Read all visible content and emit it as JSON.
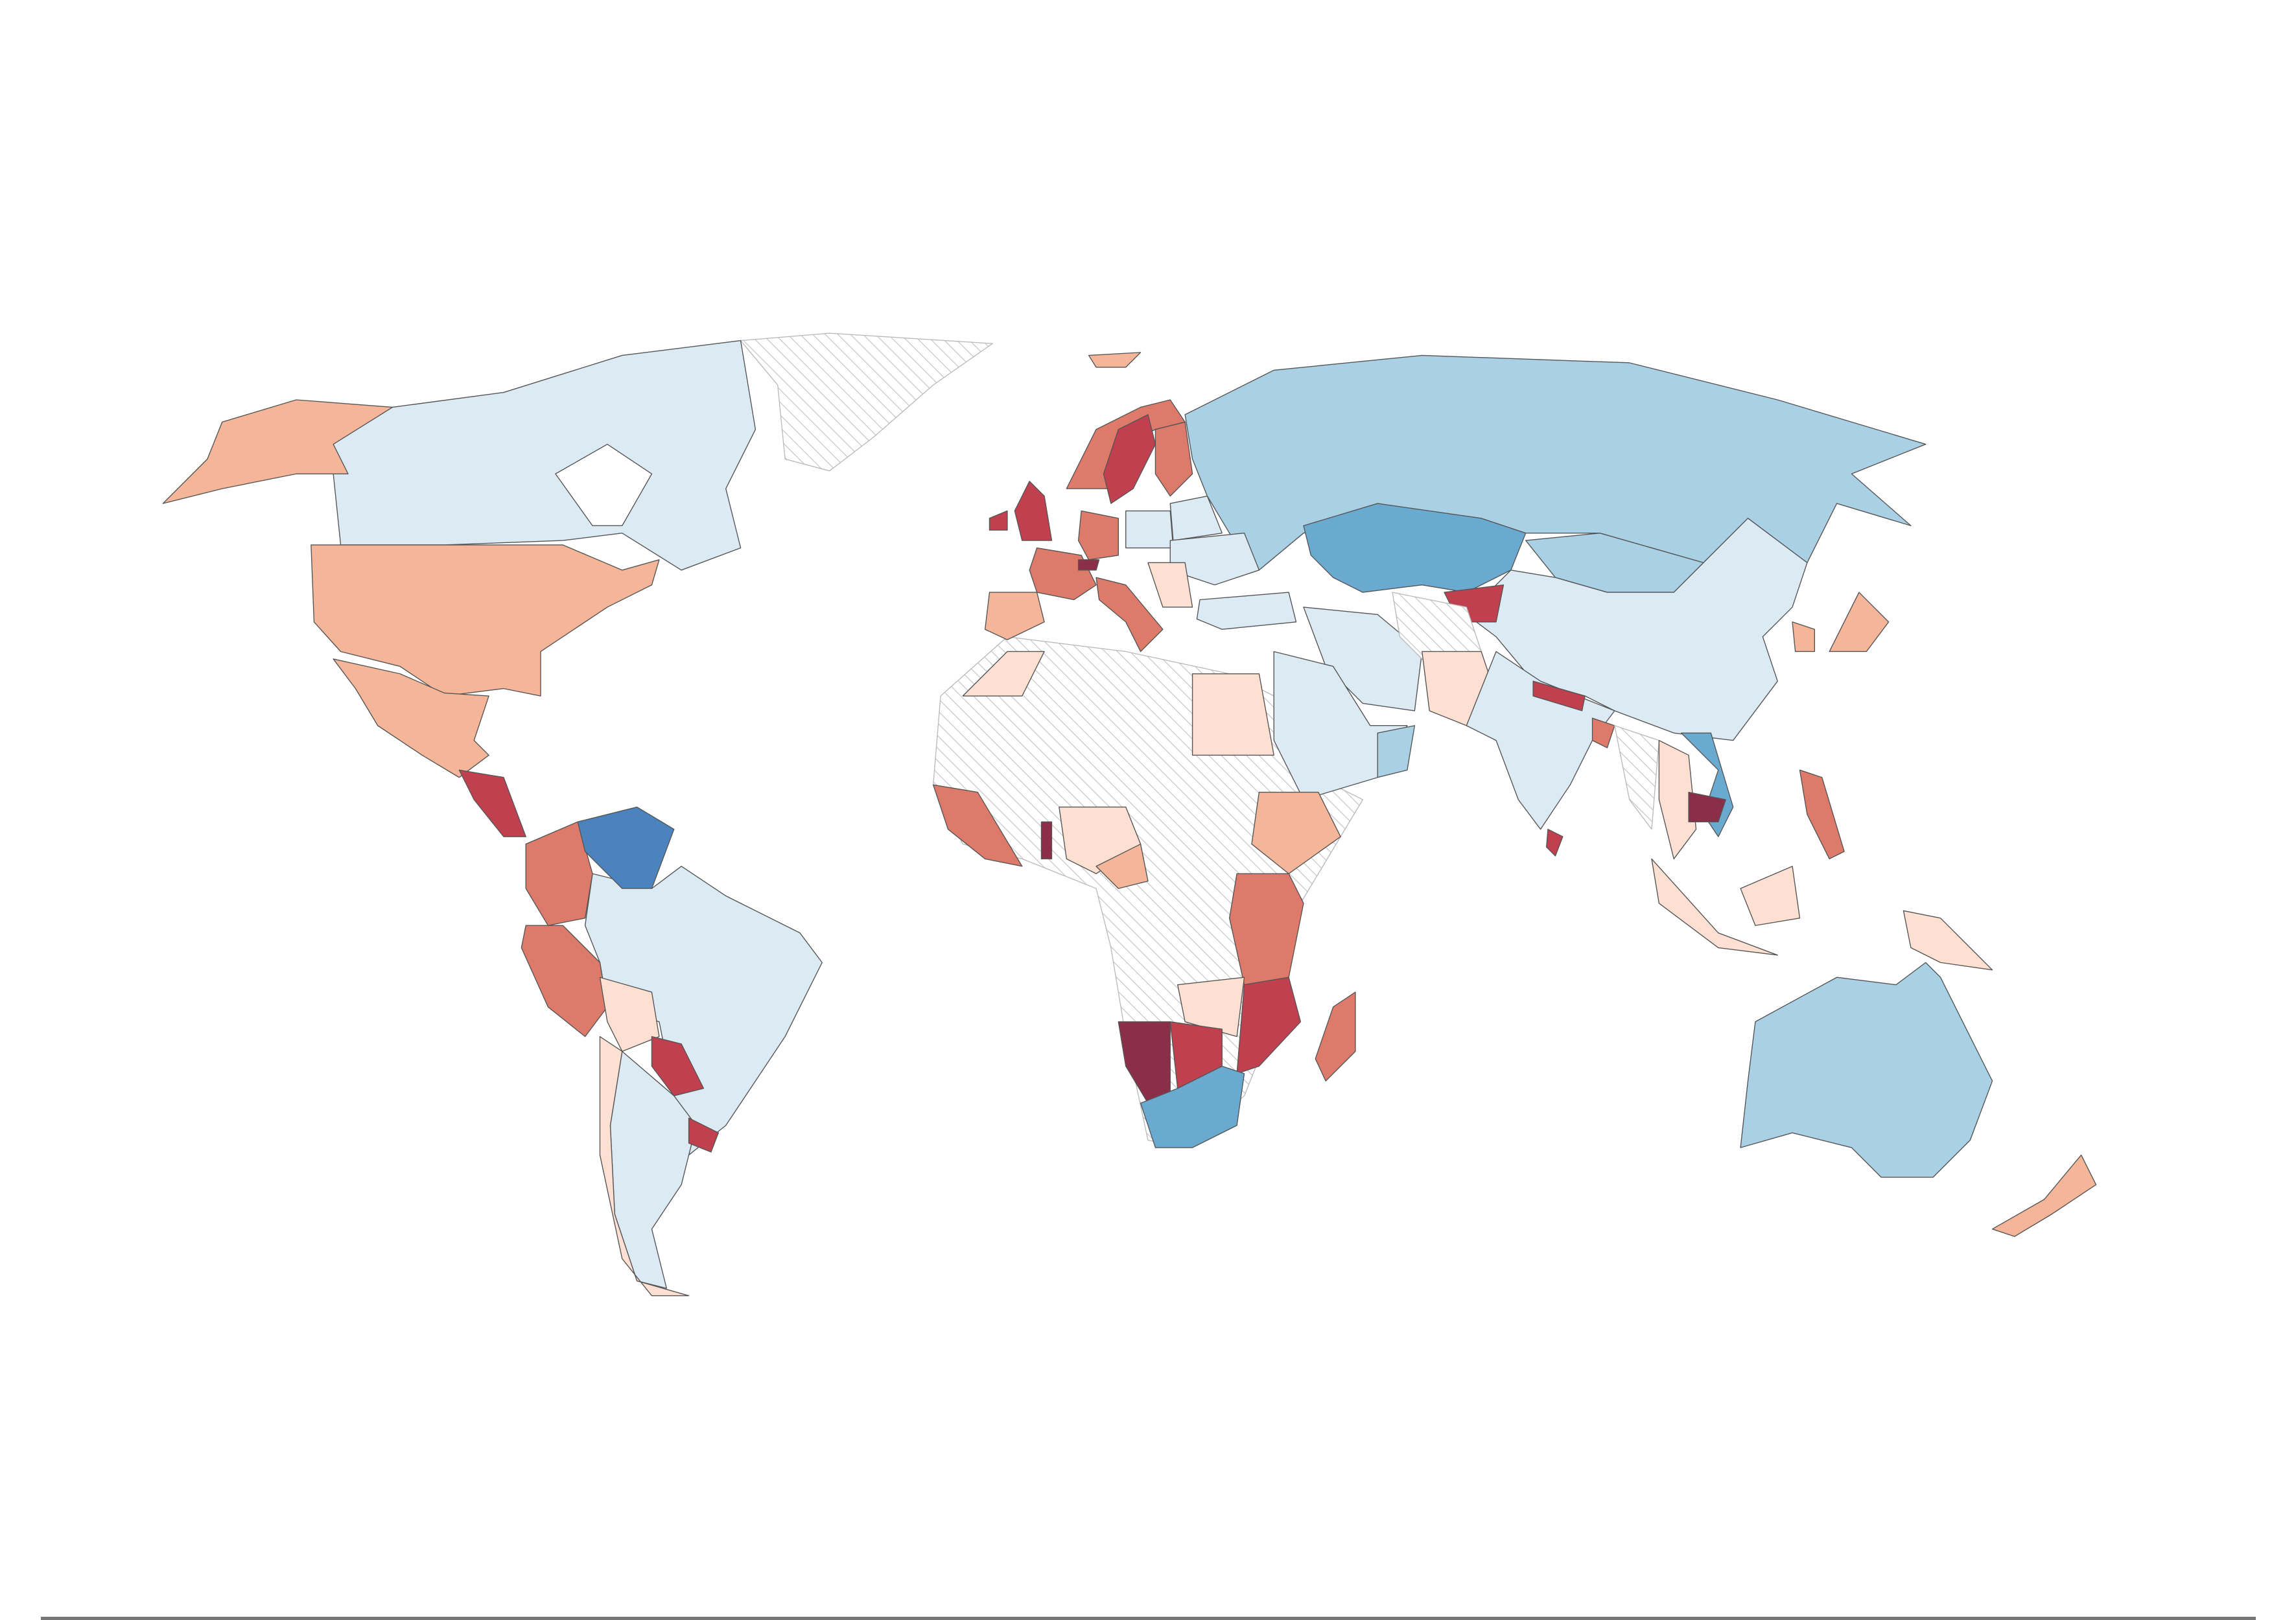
{
  "map": {
    "type": "choropleth",
    "projection": "world",
    "legend": "none",
    "palette": {
      "-4": "#4a83bd",
      "-3": "#6aaad1",
      "-2": "#a9d0e4",
      "-1": "#dbeaf3",
      "1": "#fde0d2",
      "2": "#f5b599",
      "3": "#de7a6a",
      "4": "#c0404f",
      "5": "#8b2e4a"
    },
    "no_data_color": "#ffffff",
    "no_data_pattern": "diagonal-hatch",
    "region_levels": {
      "CAN": -1,
      "USA": 2,
      "ALASKA": 2,
      "MEX": 2,
      "GRL": null,
      "CAM": 4,
      "VEN": -4,
      "COL": 3,
      "PER": 3,
      "BRA": -1,
      "BOL": 1,
      "PRY": 4,
      "ARG": -1,
      "CHL": 1,
      "URY": 4,
      "ISL": 2,
      "NOR": 3,
      "SWE": 4,
      "FIN": 3,
      "GBR": 4,
      "IRL": 4,
      "FRA": 3,
      "ESP": 2,
      "DEU": 3,
      "CHE": 5,
      "ITA": 3,
      "POL": -1,
      "UKR": -1,
      "BLR": -1,
      "BALKANS": 1,
      "TUR": -1,
      "RUS": -2,
      "KAZ": -3,
      "MNG": -2,
      "CHN": -1,
      "KGZ": 4,
      "IRN": -1,
      "AFG": null,
      "PAK": 1,
      "IND": -1,
      "NPL": 4,
      "BGD": 3,
      "LKA": 4,
      "SAU": -1,
      "OMN": -2,
      "MMR": null,
      "THA": 1,
      "KHM": 5,
      "VNM": -3,
      "JPN": 2,
      "KOR": 2,
      "PHL": 3,
      "SUMATRA": 1,
      "BORNEO": 1,
      "PNG": 1,
      "AUS": -2,
      "NZL": 2,
      "AFRICA": null,
      "EGY": 1,
      "MAR": 1,
      "ETH": 2,
      "KEN_TZA": 3,
      "WEST_AFRICA": 3,
      "GHA": 5,
      "NGA": 1,
      "CMR": 2,
      "MOZ_MWI": 4,
      "ZMB_ZWE": 1,
      "NAM": 5,
      "BWA": 4,
      "ZAF": -3,
      "MDG": 3
    }
  }
}
